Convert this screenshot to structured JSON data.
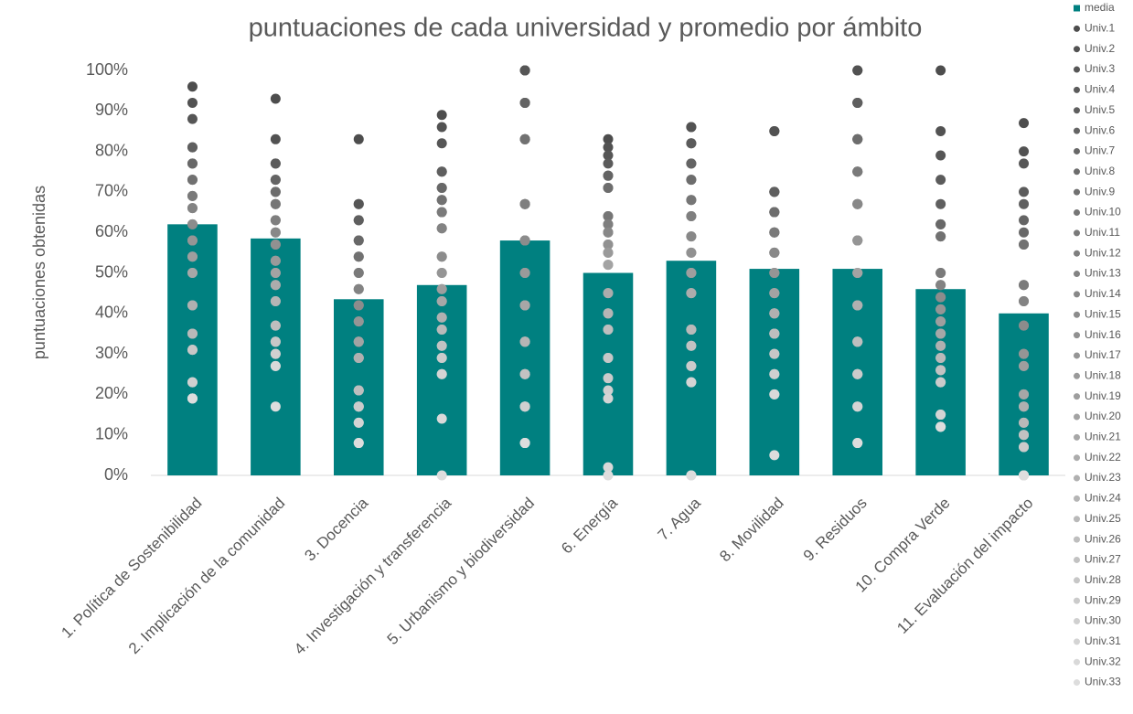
{
  "chart_data": {
    "type": "bar",
    "title": "puntuaciones de cada universidad y promedio por ámbito",
    "y_label": "puntuaciones obtenidas",
    "categories": [
      "1. Política de Sostenibilidad",
      "2. Implicación de la comunidad",
      "3. Docencia",
      "4. Investigación y transferencia",
      "5. Urbanismo y biodiversidad",
      "6. Energía",
      "7. Agua",
      "8. Movilidad",
      "9. Residuos",
      "10. Compra Verde",
      "11. Evaluación del impacto"
    ],
    "ylim": [
      0,
      100
    ],
    "yticks": [
      {
        "value": 0,
        "label": "0%"
      },
      {
        "value": 10,
        "label": "10%"
      },
      {
        "value": 20,
        "label": "20%"
      },
      {
        "value": 30,
        "label": "30%"
      },
      {
        "value": 40,
        "label": "40%"
      },
      {
        "value": 50,
        "label": "50%"
      },
      {
        "value": 60,
        "label": "60%"
      },
      {
        "value": 70,
        "label": "70%"
      },
      {
        "value": 80,
        "label": "80%"
      },
      {
        "value": 90,
        "label": "90%"
      },
      {
        "value": 100,
        "label": "100%"
      }
    ],
    "grid": false,
    "legend": "right",
    "series": [
      {
        "name": "media",
        "type": "bar",
        "color": "#008080",
        "values": [
          62,
          58.5,
          43.5,
          47,
          58,
          50,
          53,
          51,
          51,
          46,
          40
        ]
      },
      {
        "name": "Univ.1",
        "type": "scatter",
        "color": "#4d4d4d",
        "values": [
          96,
          93,
          83,
          89,
          100,
          83,
          86,
          85,
          100,
          100,
          87
        ]
      },
      {
        "name": "Univ.2",
        "type": "scatter",
        "color": "#525252",
        "values": [
          92,
          83,
          67,
          86,
          100,
          81,
          86,
          85,
          100,
          85,
          80
        ]
      },
      {
        "name": "Univ.3",
        "type": "scatter",
        "color": "#565656",
        "values": [
          88,
          77,
          67,
          82,
          100,
          79,
          82,
          70,
          92,
          79,
          77
        ]
      },
      {
        "name": "Univ.4",
        "type": "scatter",
        "color": "#5b5b5b",
        "values": [
          81,
          77,
          63,
          75,
          92,
          77,
          82,
          70,
          92,
          73,
          70
        ]
      },
      {
        "name": "Univ.5",
        "type": "scatter",
        "color": "#5f5f5f",
        "values": [
          81,
          73,
          63,
          75,
          92,
          74,
          77,
          70,
          92,
          67,
          67
        ]
      },
      {
        "name": "Univ.6",
        "type": "scatter",
        "color": "#646464",
        "values": [
          77,
          73,
          58,
          71,
          92,
          74,
          77,
          65,
          83,
          62,
          63
        ]
      },
      {
        "name": "Univ.7",
        "type": "scatter",
        "color": "#686868",
        "values": [
          77,
          70,
          58,
          71,
          83,
          71,
          73,
          65,
          83,
          62,
          60
        ]
      },
      {
        "name": "Univ.8",
        "type": "scatter",
        "color": "#6d6d6d",
        "values": [
          73,
          70,
          54,
          68,
          83,
          71,
          73,
          65,
          83,
          59,
          57
        ]
      },
      {
        "name": "Univ.9",
        "type": "scatter",
        "color": "#717171",
        "values": [
          73,
          67,
          54,
          68,
          83,
          64,
          68,
          60,
          75,
          59,
          57
        ]
      },
      {
        "name": "Univ.10",
        "type": "scatter",
        "color": "#767676",
        "values": [
          69,
          67,
          50,
          65,
          67,
          64,
          68,
          60,
          75,
          50,
          47
        ]
      },
      {
        "name": "Univ.11",
        "type": "scatter",
        "color": "#7a7a7a",
        "values": [
          69,
          63,
          50,
          65,
          67,
          62,
          64,
          60,
          75,
          50,
          47
        ]
      },
      {
        "name": "Univ.12",
        "type": "scatter",
        "color": "#7f7f7f",
        "values": [
          66,
          63,
          46,
          61,
          67,
          62,
          64,
          55,
          67,
          47,
          43
        ]
      },
      {
        "name": "Univ.13",
        "type": "scatter",
        "color": "#838383",
        "values": [
          66,
          60,
          46,
          61,
          58,
          60,
          59,
          55,
          67,
          47,
          43
        ]
      },
      {
        "name": "Univ.14",
        "type": "scatter",
        "color": "#888888",
        "values": [
          62,
          60,
          42,
          54,
          58,
          60,
          59,
          55,
          67,
          44,
          37
        ]
      },
      {
        "name": "Univ.15",
        "type": "scatter",
        "color": "#8c8c8c",
        "values": [
          62,
          57,
          42,
          54,
          58,
          57,
          55,
          50,
          58,
          44,
          37
        ]
      },
      {
        "name": "Univ.16",
        "type": "scatter",
        "color": "#919191",
        "values": [
          58,
          57,
          38,
          50,
          50,
          57,
          55,
          50,
          58,
          41,
          30
        ]
      },
      {
        "name": "Univ.17",
        "type": "scatter",
        "color": "#959595",
        "values": [
          58,
          53,
          38,
          50,
          50,
          55,
          50,
          50,
          58,
          41,
          30
        ]
      },
      {
        "name": "Univ.18",
        "type": "scatter",
        "color": "#9a9a9a",
        "values": [
          54,
          53,
          33,
          46,
          50,
          55,
          50,
          45,
          50,
          38,
          27
        ]
      },
      {
        "name": "Univ.19",
        "type": "scatter",
        "color": "#9e9e9e",
        "values": [
          54,
          50,
          33,
          46,
          42,
          52,
          50,
          45,
          50,
          38,
          27
        ]
      },
      {
        "name": "Univ.20",
        "type": "scatter",
        "color": "#a3a3a3",
        "values": [
          50,
          50,
          33,
          43,
          42,
          52,
          45,
          45,
          50,
          35,
          20
        ]
      },
      {
        "name": "Univ.21",
        "type": "scatter",
        "color": "#a7a7a7",
        "values": [
          50,
          47,
          29,
          43,
          42,
          45,
          45,
          40,
          42,
          35,
          20
        ]
      },
      {
        "name": "Univ.22",
        "type": "scatter",
        "color": "#acacac",
        "values": [
          42,
          47,
          29,
          39,
          33,
          45,
          45,
          40,
          42,
          32,
          17
        ]
      },
      {
        "name": "Univ.23",
        "type": "scatter",
        "color": "#b0b0b0",
        "values": [
          42,
          43,
          29,
          39,
          33,
          40,
          36,
          40,
          42,
          32,
          17
        ]
      },
      {
        "name": "Univ.24",
        "type": "scatter",
        "color": "#b5b5b5",
        "values": [
          35,
          43,
          21,
          36,
          33,
          40,
          36,
          35,
          33,
          29,
          13
        ]
      },
      {
        "name": "Univ.25",
        "type": "scatter",
        "color": "#b9b9b9",
        "values": [
          35,
          37,
          21,
          36,
          25,
          36,
          36,
          35,
          33,
          29,
          13
        ]
      },
      {
        "name": "Univ.26",
        "type": "scatter",
        "color": "#bebebe",
        "values": [
          31,
          37,
          21,
          32,
          25,
          36,
          32,
          35,
          33,
          26,
          10
        ]
      },
      {
        "name": "Univ.27",
        "type": "scatter",
        "color": "#c2c2c2",
        "values": [
          31,
          33,
          17,
          32,
          25,
          29,
          32,
          30,
          25,
          26,
          10
        ]
      },
      {
        "name": "Univ.28",
        "type": "scatter",
        "color": "#c7c7c7",
        "values": [
          31,
          33,
          17,
          29,
          17,
          29,
          27,
          30,
          25,
          23,
          7
        ]
      },
      {
        "name": "Univ.29",
        "type": "scatter",
        "color": "#cbcbcb",
        "values": [
          23,
          30,
          17,
          29,
          17,
          24,
          27,
          25,
          25,
          23,
          7
        ]
      },
      {
        "name": "Univ.30",
        "type": "scatter",
        "color": "#d0d0d0",
        "values": [
          23,
          30,
          13,
          25,
          17,
          21,
          23,
          25,
          17,
          15,
          0
        ]
      },
      {
        "name": "Univ.31",
        "type": "scatter",
        "color": "#d4d4d4",
        "values": [
          19,
          27,
          13,
          25,
          8,
          19,
          23,
          20,
          17,
          15,
          0
        ]
      },
      {
        "name": "Univ.32",
        "type": "scatter",
        "color": "#d9d9d9",
        "values": [
          19,
          27,
          8,
          14,
          8,
          2,
          0,
          20,
          8,
          12,
          0
        ]
      },
      {
        "name": "Univ.33",
        "type": "scatter",
        "color": "#dddddd",
        "values": [
          19,
          17,
          8,
          0,
          8,
          0,
          0,
          5,
          8,
          12,
          0
        ]
      }
    ]
  }
}
